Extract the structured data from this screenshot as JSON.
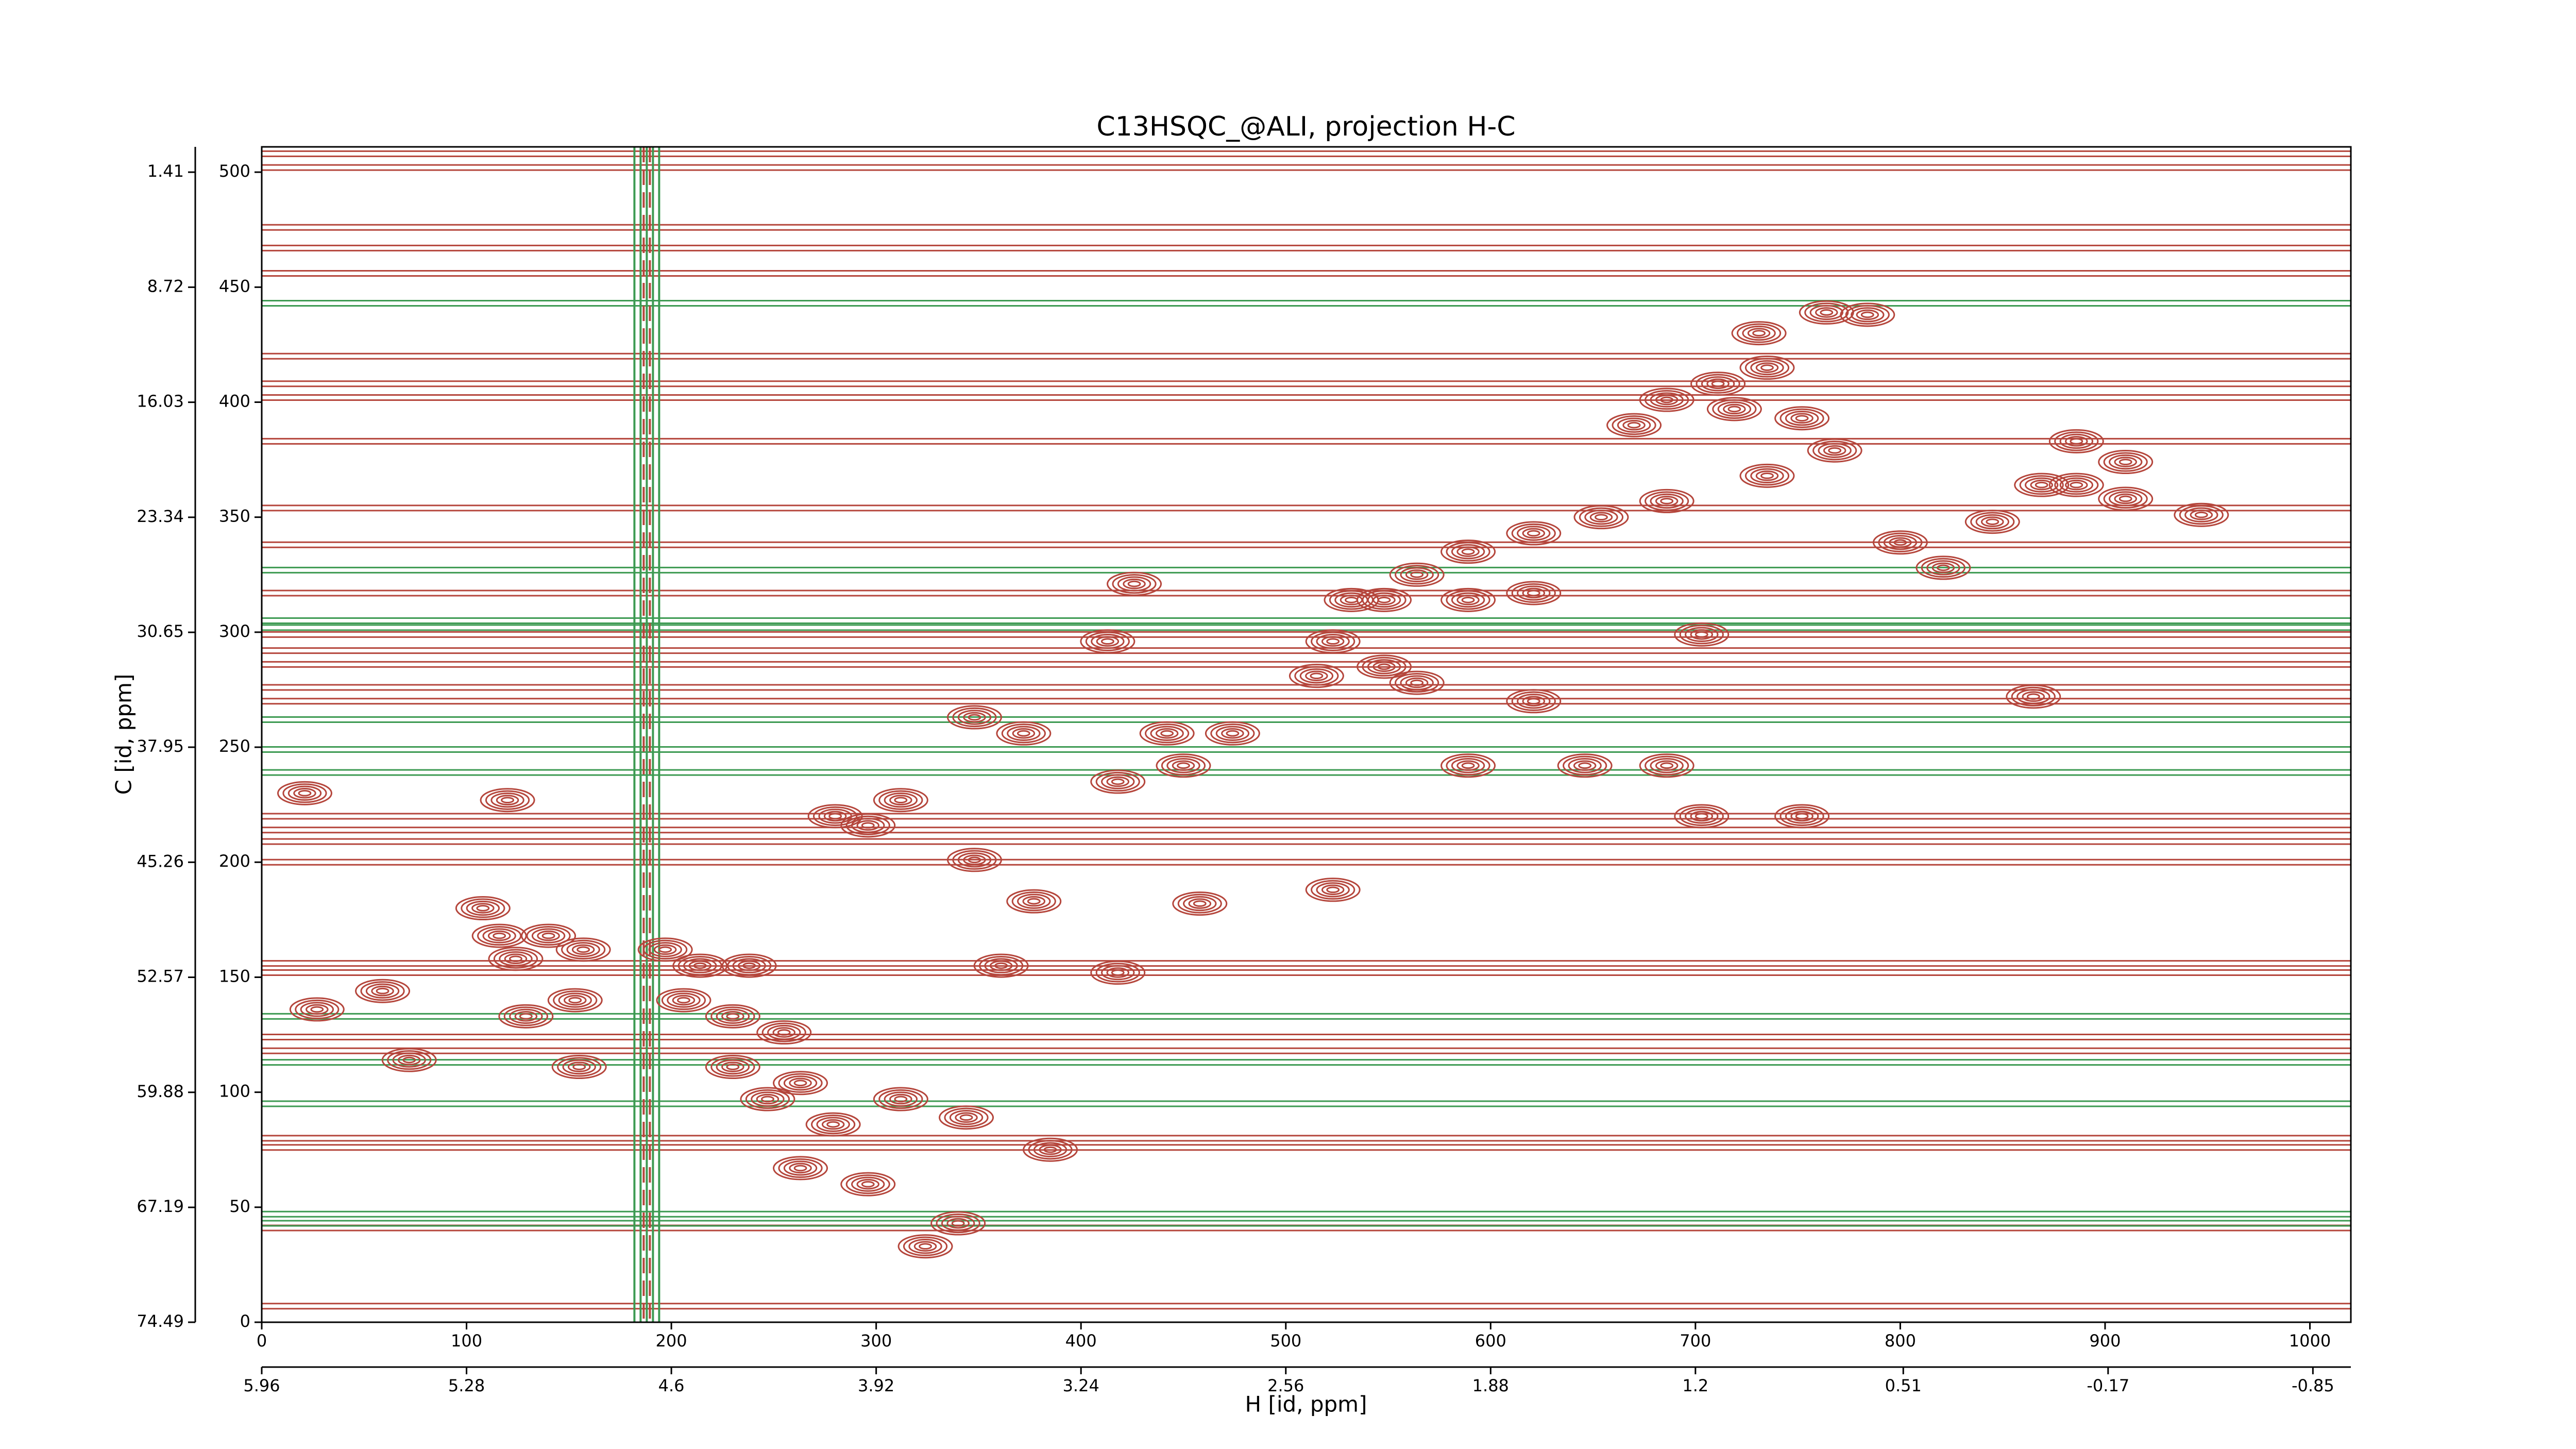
{
  "chart_data": {
    "type": "contour",
    "title": "C13HSQC_@ALI, projection H-C",
    "xlabel": "H [id, ppm]",
    "ylabel": "C [id, ppm]",
    "xlim": [
      0,
      1020
    ],
    "xticks": [
      0,
      100,
      200,
      300,
      400,
      500,
      600,
      700,
      800,
      900,
      1000
    ],
    "ylim": [
      0,
      511
    ],
    "yticks": [
      0,
      50,
      100,
      150,
      200,
      250,
      300,
      350,
      400,
      450,
      500
    ],
    "x2lim": [
      5.96,
      -0.976
    ],
    "x2ticks": [
      5.96,
      5.28,
      4.6,
      3.92,
      3.24,
      2.56,
      1.88,
      1.2,
      0.51,
      -0.17,
      -0.85
    ],
    "y2lim": [
      74.49,
      -0.198
    ],
    "y2ticks": [
      74.49,
      67.19,
      59.88,
      52.57,
      45.26,
      37.95,
      30.65,
      23.34,
      16.03,
      8.72,
      1.41
    ],
    "positive_color": "#b5463c",
    "negative_color": "#3d9a52",
    "water_x": 188,
    "peaks": {
      "x": [
        764,
        784,
        731,
        735,
        711,
        686,
        670,
        719,
        752,
        768,
        735,
        686,
        654,
        621,
        589,
        564,
        548,
        532,
        589,
        621,
        523,
        548,
        515,
        564,
        886,
        886,
        910,
        910,
        869,
        947,
        845,
        800,
        821,
        442,
        474,
        450,
        418,
        426,
        413,
        372,
        348,
        312,
        296,
        280,
        348,
        377,
        458,
        523,
        108,
        116,
        140,
        157,
        197,
        214,
        238,
        206,
        230,
        255,
        230,
        263,
        247,
        312,
        344,
        279,
        263,
        296,
        324,
        340,
        385,
        27,
        59,
        129,
        153,
        72,
        155,
        124,
        21,
        120,
        703,
        621,
        589,
        646,
        686,
        752,
        703,
        865,
        361,
        418
      ],
      "y": [
        439,
        438,
        430,
        415,
        408,
        401,
        390,
        397,
        393,
        379,
        368,
        357,
        350,
        343,
        335,
        325,
        314,
        314,
        314,
        317,
        296,
        285,
        281,
        278,
        383,
        364,
        374,
        358,
        364,
        351,
        348,
        339,
        328,
        256,
        256,
        242,
        235,
        321,
        296,
        256,
        263,
        227,
        216,
        220,
        201,
        183,
        182,
        188,
        180,
        168,
        168,
        162,
        162,
        155,
        155,
        140,
        133,
        126,
        111,
        104,
        97,
        97,
        89,
        86,
        67,
        60,
        33,
        43,
        75,
        136,
        144,
        133,
        140,
        114,
        111,
        158,
        230,
        227,
        299,
        270,
        242,
        242,
        242,
        220,
        220,
        272,
        155,
        152
      ]
    },
    "stripes": [
      508,
      502,
      476,
      467,
      456,
      420,
      408,
      402,
      383,
      354,
      338,
      317,
      299,
      292,
      286,
      276,
      270,
      220,
      214,
      209,
      200,
      156,
      152,
      124,
      118,
      80,
      76,
      41,
      7
    ],
    "negative_stripes": [
      443,
      327,
      305,
      302,
      262,
      249,
      239,
      133,
      113,
      95,
      47,
      43
    ]
  }
}
